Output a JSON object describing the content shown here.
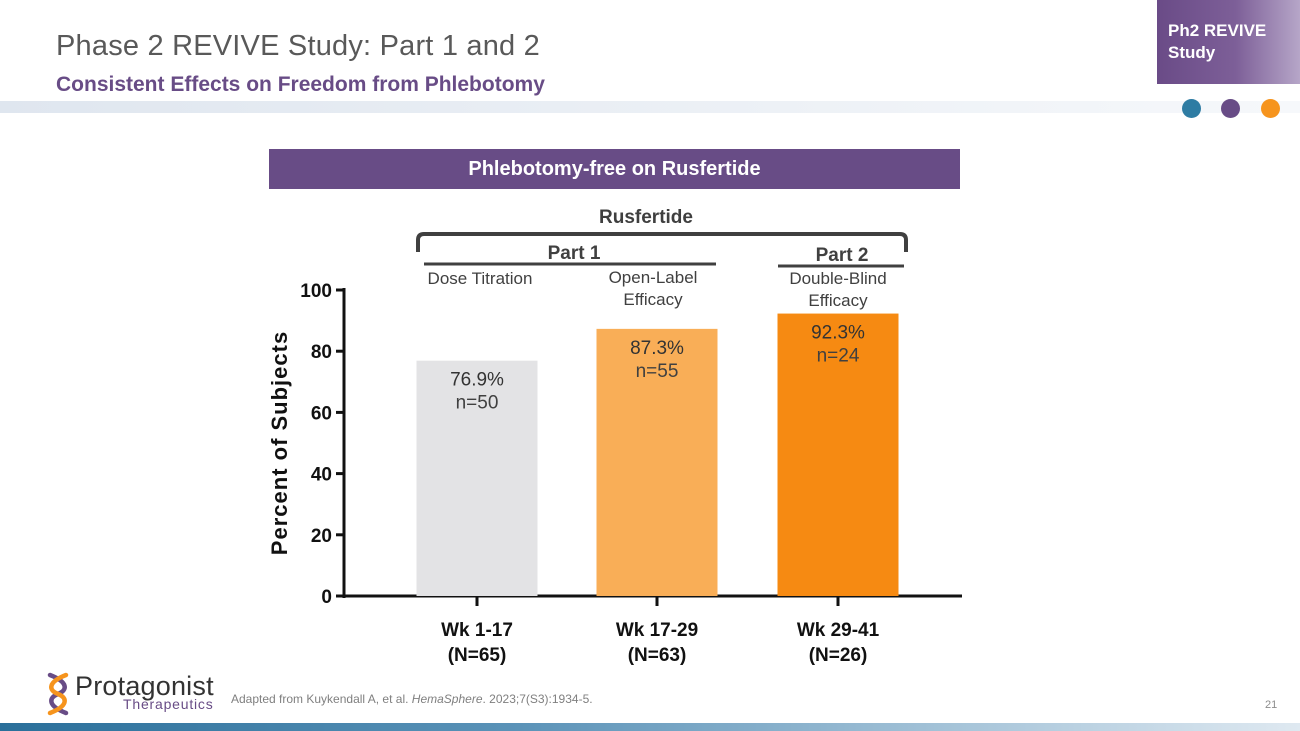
{
  "header": {
    "title": "Phase 2 REVIVE Study: Part 1 and 2",
    "subtitle": "Consistent Effects on Freedom from Phlebotomy",
    "tag_line1": "Ph2 REVIVE",
    "tag_line2": "Study"
  },
  "colors": {
    "accent_purple": "#684c86",
    "dot_blue": "#2e7ca3",
    "dot_orange": "#f6941d"
  },
  "chart_data": {
    "type": "bar",
    "title": "Phlebotomy-free on Rusfertide",
    "ylabel": "Percent of  Subjects",
    "xlabel": "",
    "ylim": [
      0,
      100
    ],
    "yticks": [
      0,
      20,
      40,
      60,
      80,
      100
    ],
    "categories": [
      {
        "line1": "Wk 1-17",
        "line2": "(N=65)"
      },
      {
        "line1": "Wk 17-29",
        "line2": "(N=63)"
      },
      {
        "line1": "Wk 29-41",
        "line2": "(N=26)"
      }
    ],
    "values": [
      76.9,
      87.3,
      92.3
    ],
    "value_labels": [
      "76.9%",
      "87.3%",
      "92.3%"
    ],
    "n_labels": [
      "n=50",
      "n=55",
      "n=24"
    ],
    "bar_colors": [
      "#e3e3e5",
      "#f9ae57",
      "#f68a12"
    ],
    "bracket_label": "Rusfertide",
    "part_labels": [
      "Part 1",
      "Part 2"
    ],
    "phase_labels": [
      {
        "line1": "Dose Titration",
        "line2": ""
      },
      {
        "line1": "Open-Label",
        "line2": "Efficacy"
      },
      {
        "line1": "Double-Blind",
        "line2": "Efficacy"
      }
    ],
    "grid": false,
    "legend": "none"
  },
  "footer": {
    "logo_name": "Protagonist",
    "logo_sub": "Therapeutics",
    "citation_prefix": "Adapted from Kuykendall A, et al. ",
    "citation_journal": "HemaSphere",
    "citation_suffix": ". 2023;7(S3):1934-5.",
    "page_number": "21"
  }
}
